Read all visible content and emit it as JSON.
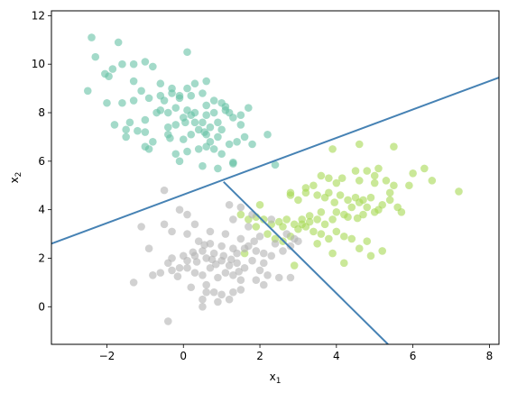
{
  "chart_data": {
    "type": "scatter",
    "title": "",
    "xlabel": "x",
    "xlabel_sub": "1",
    "ylabel": "x",
    "ylabel_sub": "2",
    "xlim": [
      -3.45,
      8.25
    ],
    "ylim": [
      -1.55,
      12.2
    ],
    "x_ticks": [
      -2,
      0,
      2,
      4,
      6,
      8
    ],
    "y_ticks": [
      0,
      2,
      4,
      6,
      8,
      10,
      12
    ],
    "x_tick_labels": [
      "−2",
      "0",
      "2",
      "4",
      "6",
      "8"
    ],
    "y_tick_labels": [
      "0",
      "2",
      "4",
      "6",
      "8",
      "10",
      "12"
    ],
    "grid": false,
    "legend": "none",
    "colors": {
      "teal": "#66c2a5",
      "green": "#a6d854",
      "gray": "#b3b3b3",
      "boundary": "#4682b4"
    },
    "boundaries": [
      {
        "x": [
          -3.45,
          8.25
        ],
        "y": [
          2.6,
          9.45
        ]
      },
      {
        "x": [
          1.05,
          5.35
        ],
        "y": [
          5.15,
          -1.55
        ]
      }
    ],
    "series": [
      {
        "color": "#66c2a5",
        "points": [
          [
            -2.4,
            11.1
          ],
          [
            -2.3,
            10.3
          ],
          [
            -1.7,
            10.9
          ],
          [
            -1.6,
            10.0
          ],
          [
            -1.3,
            10.0
          ],
          [
            -1.0,
            10.1
          ],
          [
            -0.8,
            9.9
          ],
          [
            -2.05,
            9.6
          ],
          [
            -1.95,
            9.5
          ],
          [
            -1.85,
            9.8
          ],
          [
            -1.3,
            9.3
          ],
          [
            -1.1,
            8.9
          ],
          [
            -0.6,
            9.2
          ],
          [
            -0.3,
            9.0
          ],
          [
            -0.1,
            8.6
          ],
          [
            0.1,
            9.0
          ],
          [
            0.3,
            9.2
          ],
          [
            0.6,
            9.3
          ],
          [
            0.1,
            10.5
          ],
          [
            -2.5,
            8.9
          ],
          [
            -2.0,
            8.4
          ],
          [
            -1.6,
            8.4
          ],
          [
            -1.3,
            8.5
          ],
          [
            -0.9,
            8.6
          ],
          [
            -0.5,
            8.5
          ],
          [
            -0.3,
            8.8
          ],
          [
            -0.1,
            8.7
          ],
          [
            0.2,
            8.7
          ],
          [
            0.5,
            8.8
          ],
          [
            0.6,
            8.3
          ],
          [
            0.8,
            8.5
          ],
          [
            1.0,
            8.4
          ],
          [
            1.2,
            8.0
          ],
          [
            1.5,
            7.9
          ],
          [
            1.7,
            8.2
          ],
          [
            -1.8,
            7.5
          ],
          [
            -1.5,
            7.3
          ],
          [
            -1.4,
            7.6
          ],
          [
            -1.0,
            7.7
          ],
          [
            -0.7,
            8.0
          ],
          [
            -0.6,
            8.1
          ],
          [
            -0.4,
            7.4
          ],
          [
            -0.2,
            7.5
          ],
          [
            0.0,
            7.8
          ],
          [
            0.2,
            7.9
          ],
          [
            0.3,
            8.0
          ],
          [
            0.5,
            7.6
          ],
          [
            0.6,
            7.9
          ],
          [
            0.8,
            8.0
          ],
          [
            1.1,
            8.1
          ],
          [
            1.3,
            7.8
          ],
          [
            1.5,
            7.5
          ],
          [
            -1.5,
            7.0
          ],
          [
            -1.0,
            7.2
          ],
          [
            -0.8,
            6.8
          ],
          [
            -0.4,
            7.1
          ],
          [
            0.0,
            6.9
          ],
          [
            0.2,
            7.1
          ],
          [
            0.4,
            7.3
          ],
          [
            0.6,
            7.1
          ],
          [
            0.7,
            6.8
          ],
          [
            0.9,
            7.0
          ],
          [
            1.0,
            7.3
          ],
          [
            1.2,
            6.7
          ],
          [
            1.4,
            6.8
          ],
          [
            1.6,
            7.0
          ],
          [
            -1.0,
            6.6
          ],
          [
            -0.9,
            6.5
          ],
          [
            -0.2,
            6.3
          ],
          [
            0.1,
            6.4
          ],
          [
            0.4,
            6.5
          ],
          [
            0.6,
            6.6
          ],
          [
            0.8,
            6.5
          ],
          [
            1.0,
            6.3
          ],
          [
            1.3,
            5.9
          ],
          [
            1.8,
            6.7
          ],
          [
            2.2,
            7.1
          ],
          [
            0.5,
            5.8
          ],
          [
            0.9,
            5.7
          ],
          [
            -0.4,
            8.0
          ],
          [
            -0.2,
            8.2
          ],
          [
            0.1,
            8.1
          ],
          [
            0.3,
            7.6
          ],
          [
            0.7,
            7.4
          ],
          [
            -0.1,
            6.0
          ],
          [
            1.3,
            5.95
          ],
          [
            -1.2,
            7.25
          ],
          [
            0.05,
            7.6
          ],
          [
            0.55,
            7.2
          ],
          [
            0.9,
            7.6
          ],
          [
            1.1,
            8.25
          ],
          [
            -0.6,
            8.7
          ],
          [
            2.4,
            5.85
          ],
          [
            -0.35,
            6.95
          ]
        ]
      },
      {
        "color": "#a6d854",
        "points": [
          [
            4.6,
            6.7
          ],
          [
            5.5,
            6.6
          ],
          [
            6.3,
            5.7
          ],
          [
            6.5,
            5.2
          ],
          [
            7.2,
            4.75
          ],
          [
            6.0,
            5.5
          ],
          [
            5.9,
            5.0
          ],
          [
            4.8,
            5.6
          ],
          [
            5.1,
            5.7
          ],
          [
            3.9,
            6.5
          ],
          [
            4.5,
            5.6
          ],
          [
            4.6,
            5.2
          ],
          [
            5.0,
            5.1
          ],
          [
            5.3,
            5.2
          ],
          [
            5.4,
            4.7
          ],
          [
            4.0,
            5.1
          ],
          [
            3.8,
            5.3
          ],
          [
            3.6,
            5.4
          ],
          [
            3.4,
            5.0
          ],
          [
            3.2,
            4.9
          ],
          [
            3.0,
            4.4
          ],
          [
            3.2,
            4.7
          ],
          [
            3.5,
            4.6
          ],
          [
            3.8,
            4.7
          ],
          [
            4.1,
            4.6
          ],
          [
            4.3,
            4.4
          ],
          [
            4.6,
            4.3
          ],
          [
            4.8,
            4.1
          ],
          [
            5.0,
            3.9
          ],
          [
            5.2,
            4.2
          ],
          [
            4.2,
            3.8
          ],
          [
            4.0,
            3.9
          ],
          [
            3.9,
            3.6
          ],
          [
            3.7,
            3.4
          ],
          [
            3.5,
            3.6
          ],
          [
            3.3,
            3.5
          ],
          [
            3.1,
            3.6
          ],
          [
            2.9,
            3.4
          ],
          [
            2.7,
            3.6
          ],
          [
            2.5,
            3.5
          ],
          [
            2.3,
            3.4
          ],
          [
            2.1,
            3.6
          ],
          [
            1.9,
            3.7
          ],
          [
            1.7,
            3.6
          ],
          [
            1.5,
            3.8
          ],
          [
            2.0,
            4.2
          ],
          [
            2.2,
            3.0
          ],
          [
            2.4,
            2.8
          ],
          [
            2.6,
            2.7
          ],
          [
            2.8,
            2.9
          ],
          [
            3.0,
            3.2
          ],
          [
            3.2,
            3.3
          ],
          [
            3.4,
            3.1
          ],
          [
            3.6,
            3.0
          ],
          [
            3.8,
            2.8
          ],
          [
            4.0,
            3.1
          ],
          [
            4.2,
            2.9
          ],
          [
            4.4,
            2.8
          ],
          [
            4.6,
            2.4
          ],
          [
            4.8,
            2.7
          ],
          [
            5.2,
            2.3
          ],
          [
            4.9,
            2.1
          ],
          [
            3.9,
            2.2
          ],
          [
            3.5,
            2.6
          ],
          [
            2.9,
            1.7
          ],
          [
            4.2,
            1.8
          ],
          [
            1.6,
            2.2
          ],
          [
            1.9,
            3.3
          ],
          [
            2.8,
            4.7
          ],
          [
            2.8,
            4.6
          ],
          [
            4.4,
            4.1
          ],
          [
            4.5,
            4.5
          ],
          [
            4.7,
            4.4
          ],
          [
            4.9,
            4.5
          ],
          [
            5.6,
            4.1
          ],
          [
            5.7,
            3.9
          ],
          [
            4.3,
            3.7
          ],
          [
            4.7,
            3.8
          ],
          [
            5.5,
            5.0
          ],
          [
            5.0,
            5.4
          ],
          [
            3.6,
            3.9
          ],
          [
            3.1,
            3.4
          ],
          [
            2.6,
            3.3
          ],
          [
            3.3,
            3.75
          ],
          [
            3.7,
            4.5
          ],
          [
            4.15,
            5.3
          ],
          [
            5.4,
            4.4
          ],
          [
            4.55,
            3.65
          ],
          [
            5.1,
            4.0
          ],
          [
            3.95,
            4.3
          ]
        ]
      },
      {
        "color": "#b3b3b3",
        "points": [
          [
            -0.5,
            4.8
          ],
          [
            -0.5,
            3.4
          ],
          [
            -0.1,
            4.0
          ],
          [
            0.1,
            3.8
          ],
          [
            -1.1,
            3.3
          ],
          [
            -0.9,
            2.4
          ],
          [
            -0.3,
            3.1
          ],
          [
            0.1,
            3.0
          ],
          [
            0.3,
            3.4
          ],
          [
            0.7,
            3.1
          ],
          [
            1.1,
            3.0
          ],
          [
            1.0,
            2.5
          ],
          [
            1.3,
            2.4
          ],
          [
            1.5,
            2.8
          ],
          [
            1.7,
            2.5
          ],
          [
            1.9,
            2.3
          ],
          [
            2.3,
            2.1
          ],
          [
            2.4,
            2.6
          ],
          [
            2.6,
            2.3
          ],
          [
            2.8,
            2.5
          ],
          [
            2.9,
            2.8
          ],
          [
            -0.4,
            1.8
          ],
          [
            -0.3,
            1.5
          ],
          [
            -0.1,
            1.6
          ],
          [
            0.1,
            1.9
          ],
          [
            0.3,
            2.1
          ],
          [
            0.5,
            2.3
          ],
          [
            0.6,
            2.0
          ],
          [
            0.8,
            2.2
          ],
          [
            1.0,
            1.9
          ],
          [
            1.2,
            1.7
          ],
          [
            1.4,
            1.8
          ],
          [
            1.6,
            1.6
          ],
          [
            1.8,
            1.9
          ],
          [
            2.0,
            1.5
          ],
          [
            2.2,
            1.3
          ],
          [
            2.5,
            1.2
          ],
          [
            2.8,
            1.2
          ],
          [
            0.3,
            1.4
          ],
          [
            0.5,
            1.3
          ],
          [
            0.7,
            1.6
          ],
          [
            0.9,
            1.2
          ],
          [
            1.1,
            1.4
          ],
          [
            1.3,
            1.3
          ],
          [
            1.5,
            1.1
          ],
          [
            0.2,
            0.8
          ],
          [
            0.6,
            0.9
          ],
          [
            0.8,
            0.6
          ],
          [
            1.0,
            0.5
          ],
          [
            1.3,
            0.6
          ],
          [
            1.5,
            0.7
          ],
          [
            0.9,
            0.2
          ],
          [
            0.5,
            0.0
          ],
          [
            0.5,
            0.3
          ],
          [
            -0.4,
            -0.6
          ],
          [
            -0.8,
            1.3
          ],
          [
            -1.3,
            1.0
          ],
          [
            1.2,
            4.2
          ],
          [
            1.3,
            3.6
          ],
          [
            1.5,
            4.1
          ],
          [
            1.7,
            3.3
          ],
          [
            1.8,
            3.8
          ],
          [
            2.0,
            2.9
          ],
          [
            2.1,
            2.2
          ],
          [
            2.3,
            3.6
          ],
          [
            2.7,
            3.0
          ],
          [
            3.0,
            2.7
          ],
          [
            1.9,
            1.1
          ],
          [
            2.1,
            0.9
          ],
          [
            1.2,
            0.3
          ],
          [
            0.6,
            0.6
          ],
          [
            0.1,
            1.6
          ],
          [
            -0.3,
            2.0
          ],
          [
            0.4,
            2.7
          ],
          [
            0.7,
            2.6
          ],
          [
            1.4,
            2.2
          ],
          [
            1.6,
            2.4
          ],
          [
            0.0,
            2.1
          ],
          [
            -0.6,
            1.4
          ],
          [
            2.1,
            1.8
          ],
          [
            0.35,
            1.85
          ],
          [
            0.85,
            1.75
          ],
          [
            1.25,
            1.95
          ],
          [
            -0.15,
            1.25
          ],
          [
            0.55,
            2.55
          ],
          [
            1.05,
            2.1
          ],
          [
            1.45,
            1.45
          ],
          [
            0.25,
            2.25
          ],
          [
            0.75,
            1.95
          ],
          [
            1.85,
            2.7
          ]
        ]
      }
    ]
  }
}
